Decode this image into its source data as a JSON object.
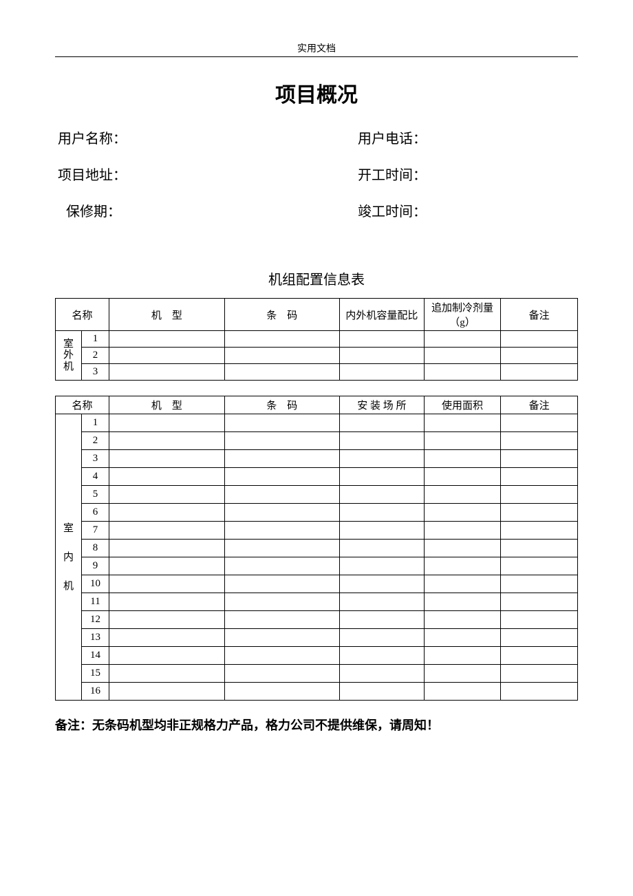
{
  "header": {
    "label": "实用文档"
  },
  "title": "项目概况",
  "fields": {
    "user_name": "用户名称：",
    "user_phone": "用户电话：",
    "project_addr": "项目地址：",
    "start_time": "开工时间：",
    "warranty": "保修期：",
    "finish_time": "竣工时间："
  },
  "subtitle": "机组配置信息表",
  "table1": {
    "headers": {
      "name": "名称",
      "model": "机　型",
      "code": "条　码",
      "ratio": "内外机容量配比",
      "refrig": "追加制冷剂量（g）",
      "remark": "备注"
    },
    "group_label_l1": "室",
    "group_label_l2": "外",
    "group_label_l3": "机",
    "rows": [
      "1",
      "2",
      "3"
    ]
  },
  "table2": {
    "headers": {
      "name": "名称",
      "model": "机　型",
      "code": "条　码",
      "place": "安 装 场 所",
      "area": "使用面积",
      "remark": "备注"
    },
    "group_label_l1": "室",
    "group_label_l2": "内",
    "group_label_l3": "机",
    "rows": [
      "1",
      "2",
      "3",
      "4",
      "5",
      "6",
      "7",
      "8",
      "9",
      "10",
      "11",
      "12",
      "13",
      "14",
      "15",
      "16"
    ]
  },
  "note": "备注：无条码机型均非正规格力产品，格力公司不提供维保，请周知！",
  "dot": "."
}
